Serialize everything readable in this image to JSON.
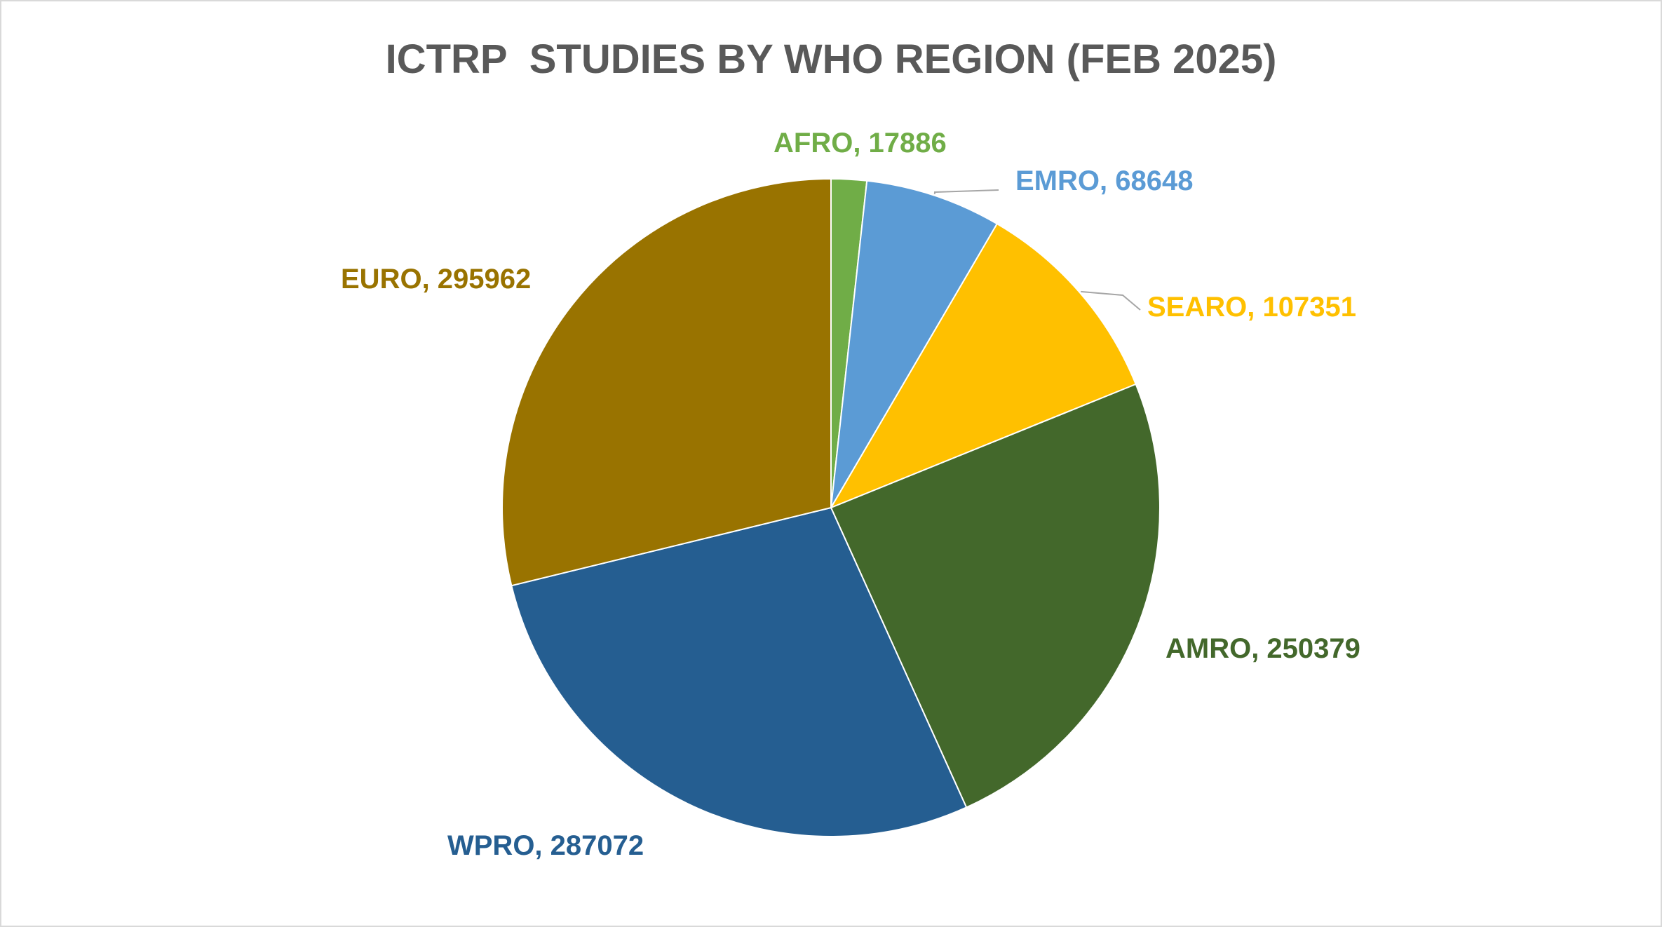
{
  "chart_data": {
    "type": "pie",
    "title": "ICTRP  STUDIES BY WHO REGION (FEB 2025)",
    "slices": [
      {
        "label": "AFRO",
        "value": 17886,
        "display": "AFRO, 17886",
        "color": "#70ad47"
      },
      {
        "label": "EMRO",
        "value": 68648,
        "display": "EMRO, 68648",
        "color": "#5b9bd5"
      },
      {
        "label": "SEARO",
        "value": 107351,
        "display": "SEARO, 107351",
        "color": "#ffc000"
      },
      {
        "label": "AMRO",
        "value": 250379,
        "display": "AMRO, 250379",
        "color": "#43682b"
      },
      {
        "label": "WPRO",
        "value": 287072,
        "display": "WPRO, 287072",
        "color": "#255e91"
      },
      {
        "label": "EURO",
        "value": 295962,
        "display": "EURO, 295962",
        "color": "#997300"
      }
    ],
    "start_angle": "12 o'clock",
    "direction": "clockwise",
    "legend": "none",
    "data_labels": "outside end, category name and value",
    "leader_line_color": "#a6a6a6"
  }
}
